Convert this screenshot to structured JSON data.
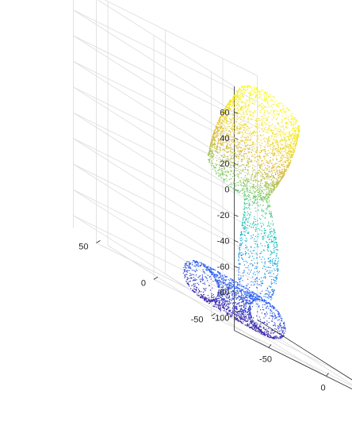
{
  "chart_data": {
    "type": "scatter3d",
    "title": "",
    "xlabel": "",
    "ylabel": "",
    "zlabel": "",
    "grid": true,
    "colormap": "parula",
    "colormap_stops": [
      "#3e26a8",
      "#2a63f5",
      "#1b9de0",
      "#16c1b8",
      "#7ccb6a",
      "#d9b93b",
      "#f2e02b",
      "#f9fb0e"
    ],
    "axes": {
      "x": {
        "lim": [
          -80,
          80
        ],
        "ticks": [
          -50,
          0,
          50
        ],
        "tick_labels": [
          "-50",
          "0",
          "50"
        ]
      },
      "y": {
        "lim": [
          -70,
          70
        ],
        "ticks": [
          -50,
          0,
          50
        ],
        "tick_labels": [
          "-50",
          "0",
          "50"
        ]
      },
      "z": {
        "lim": [
          -110,
          80
        ],
        "ticks": [
          -100,
          -80,
          -60,
          -40,
          -20,
          0,
          20,
          40,
          60
        ],
        "tick_labels": [
          "-100",
          "-80",
          "-60",
          "-40",
          "-20",
          "0",
          "20",
          "40",
          "60"
        ]
      }
    },
    "series": [
      {
        "shape": "point cloud of a bent tubular surface; points colored by z",
        "segments": [
          {
            "part": "base ring",
            "center": [
              0,
              10,
              -100
            ],
            "radius_x": 22,
            "radius_y": 28,
            "z_range": [
              -110,
              -75
            ]
          },
          {
            "part": "neck",
            "center": [
              10,
              5,
              -40
            ],
            "radius": 11,
            "z_range": [
              -80,
              0
            ]
          },
          {
            "part": "upper lobe",
            "from": [
              -5,
              0,
              0
            ],
            "to": [
              30,
              10,
              65
            ],
            "radius": 22,
            "z_range": [
              -10,
              80
            ]
          }
        ]
      }
    ]
  }
}
